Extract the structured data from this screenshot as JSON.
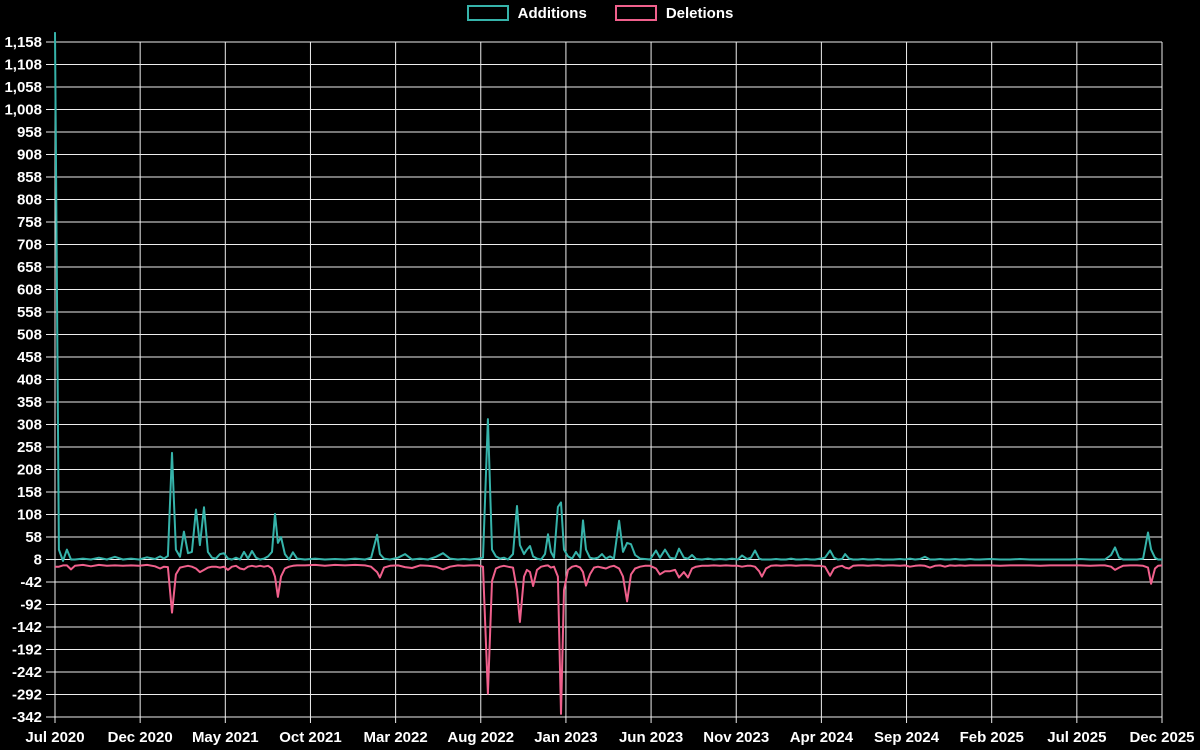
{
  "colors": {
    "background": "#000000",
    "grid": "#ededed",
    "text": "#ffffff",
    "additions": "#36b3aa",
    "deletions": "#f0608c"
  },
  "legend": {
    "items": [
      {
        "label": "Additions",
        "color": "#36b3aa"
      },
      {
        "label": "Deletions",
        "color": "#f0608c"
      }
    ]
  },
  "chart_data": {
    "type": "line",
    "legend_position": "top-center",
    "grid": true,
    "x_axis": {
      "unit": "months since Jul 2020",
      "range": [
        0,
        65
      ],
      "tick_positions": [
        0,
        5,
        10,
        15,
        20,
        25,
        30,
        35,
        40,
        45,
        50,
        55,
        60,
        65
      ],
      "tick_labels": [
        "Jul 2020",
        "Dec 2020",
        "May 2021",
        "Oct 2021",
        "Mar 2022",
        "Aug 2022",
        "Jan 2023",
        "Jun 2023",
        "Nov 2023",
        "Apr 2024",
        "Sep 2024",
        "Feb 2025",
        "Jul 2025",
        "Dec 2025"
      ]
    },
    "y_axis": {
      "range": [
        -342,
        1158
      ],
      "ticks": [
        1158,
        1108,
        1058,
        1008,
        958,
        908,
        858,
        808,
        758,
        708,
        658,
        608,
        558,
        508,
        458,
        408,
        358,
        308,
        258,
        208,
        158,
        108,
        58,
        8,
        -42,
        -92,
        -142,
        -192,
        -242,
        -292,
        -342
      ],
      "tick_labels": [
        "1,158",
        "1,108",
        "1,058",
        "1,008",
        "958",
        "908",
        "858",
        "808",
        "758",
        "708",
        "658",
        "608",
        "558",
        "508",
        "458",
        "408",
        "358",
        "308",
        "258",
        "208",
        "158",
        "108",
        "58",
        "8",
        "-42",
        "-92",
        "-142",
        "-192",
        "-242",
        "-292",
        "-342"
      ]
    },
    "x": [
      0,
      0.23,
      0.47,
      0.7,
      0.94,
      1.17,
      1.64,
      2.11,
      2.58,
      3.05,
      3.52,
      3.99,
      4.46,
      4.93,
      5.4,
      5.87,
      6.17,
      6.4,
      6.63,
      6.87,
      7.1,
      7.34,
      7.57,
      7.81,
      8.04,
      8.28,
      8.51,
      8.75,
      8.98,
      9.22,
      9.45,
      9.69,
      9.92,
      10.16,
      10.39,
      10.63,
      10.86,
      11.1,
      11.33,
      11.57,
      11.8,
      12.04,
      12.27,
      12.51,
      12.74,
      12.92,
      13.09,
      13.27,
      13.5,
      13.74,
      13.97,
      14.21,
      14.68,
      15.27,
      15.85,
      16.44,
      17.03,
      17.62,
      18.2,
      18.56,
      18.91,
      19.08,
      19.32,
      19.67,
      20.14,
      20.55,
      20.96,
      21.43,
      21.9,
      22.37,
      22.78,
      23.19,
      23.66,
      24.01,
      24.37,
      24.84,
      25.13,
      25.42,
      25.66,
      25.89,
      26.13,
      26.36,
      26.6,
      26.89,
      27.13,
      27.3,
      27.54,
      27.71,
      27.89,
      28.07,
      28.3,
      28.54,
      28.77,
      28.95,
      29.12,
      29.3,
      29.53,
      29.71,
      29.89,
      30.12,
      30.36,
      30.59,
      30.83,
      31.0,
      31.18,
      31.41,
      31.65,
      31.88,
      32.12,
      32.35,
      32.59,
      32.82,
      33.12,
      33.35,
      33.59,
      33.82,
      34.06,
      34.35,
      34.64,
      34.94,
      35.29,
      35.52,
      35.82,
      36.11,
      36.41,
      36.64,
      36.93,
      37.17,
      37.4,
      37.64,
      37.99,
      38.34,
      38.69,
      39.05,
      39.4,
      39.75,
      40.1,
      40.34,
      40.63,
      40.87,
      41.1,
      41.34,
      41.51,
      41.75,
      42.04,
      42.34,
      42.63,
      42.92,
      43.22,
      43.51,
      43.8,
      44.1,
      44.39,
      44.62,
      44.92,
      45.21,
      45.51,
      45.74,
      45.97,
      46.21,
      46.39,
      46.62,
      46.86,
      47.15,
      47.44,
      47.74,
      48.03,
      48.32,
      48.62,
      48.91,
      49.21,
      49.62,
      49.91,
      50.2,
      50.5,
      50.79,
      51.08,
      51.38,
      51.67,
      51.97,
      52.26,
      52.55,
      52.85,
      53.14,
      53.43,
      53.73,
      54.02,
      54.31,
      54.9,
      55.49,
      56.08,
      56.66,
      57.25,
      57.84,
      58.42,
      59.01,
      59.6,
      60.19,
      60.77,
      61.36,
      61.65,
      62.01,
      62.24,
      62.48,
      62.71,
      63.12,
      63.53,
      63.89,
      64.18,
      64.36,
      64.59,
      64.77,
      65
    ],
    "series": [
      {
        "name": "Additions",
        "color": "#36b3aa",
        "values": [
          1180,
          30,
          5,
          30,
          8,
          8,
          10,
          8,
          12,
          8,
          14,
          8,
          10,
          8,
          13,
          9,
          15,
          10,
          16,
          245,
          30,
          14,
          70,
          22,
          25,
          119,
          40,
          124,
          25,
          12,
          10,
          20,
          22,
          10,
          8,
          12,
          8,
          25,
          10,
          27,
          12,
          8,
          10,
          15,
          25,
          109,
          45,
          58,
          20,
          8,
          24,
          10,
          8,
          10,
          8,
          9,
          8,
          10,
          8,
          12,
          63,
          20,
          10,
          8,
          12,
          20,
          8,
          10,
          8,
          14,
          22,
          10,
          8,
          9,
          8,
          10,
          12,
          320,
          30,
          15,
          10,
          12,
          8,
          20,
          127,
          40,
          20,
          30,
          38,
          15,
          10,
          8,
          20,
          64,
          25,
          12,
          125,
          135,
          30,
          15,
          10,
          25,
          12,
          95,
          30,
          12,
          10,
          12,
          20,
          10,
          15,
          10,
          94,
          25,
          45,
          42,
          18,
          10,
          9,
          8,
          28,
          12,
          30,
          12,
          10,
          32,
          12,
          10,
          18,
          9,
          8,
          10,
          8,
          9,
          8,
          10,
          8,
          17,
          9,
          12,
          28,
          10,
          8,
          8,
          8,
          9,
          8,
          8,
          10,
          8,
          8,
          9,
          8,
          8,
          10,
          12,
          28,
          12,
          8,
          9,
          20,
          10,
          8,
          8,
          9,
          8,
          8,
          9,
          8,
          8,
          8,
          9,
          8,
          10,
          8,
          9,
          14,
          8,
          8,
          9,
          8,
          8,
          9,
          8,
          8,
          9,
          8,
          8,
          9,
          8,
          8,
          9,
          8,
          8,
          8,
          8,
          8,
          9,
          8,
          8,
          8,
          18,
          35,
          12,
          8,
          8,
          8,
          10,
          68,
          30,
          12,
          8,
          8
        ]
      },
      {
        "name": "Deletions",
        "color": "#f0608c",
        "values": [
          -8,
          -8,
          -5,
          -5,
          -14,
          -6,
          -4,
          -7,
          -4,
          -6,
          -5,
          -6,
          -5,
          -6,
          -4,
          -7,
          -12,
          -8,
          -9,
          -110,
          -25,
          -10,
          -8,
          -6,
          -8,
          -12,
          -20,
          -15,
          -10,
          -8,
          -8,
          -10,
          -8,
          -15,
          -8,
          -6,
          -12,
          -14,
          -8,
          -6,
          -8,
          -6,
          -8,
          -6,
          -12,
          -30,
          -75,
          -30,
          -12,
          -8,
          -6,
          -5,
          -5,
          -4,
          -6,
          -4,
          -5,
          -4,
          -5,
          -8,
          -20,
          -32,
          -10,
          -6,
          -5,
          -9,
          -11,
          -5,
          -6,
          -8,
          -14,
          -8,
          -5,
          -6,
          -5,
          -5,
          -8,
          -290,
          -40,
          -12,
          -8,
          -6,
          -8,
          -10,
          -60,
          -131,
          -30,
          -15,
          -20,
          -51,
          -15,
          -8,
          -6,
          -5,
          -10,
          -8,
          -30,
          -335,
          -60,
          -15,
          -8,
          -6,
          -10,
          -20,
          -50,
          -25,
          -10,
          -8,
          -10,
          -12,
          -8,
          -6,
          -12,
          -30,
          -85,
          -25,
          -12,
          -8,
          -6,
          -6,
          -12,
          -25,
          -18,
          -18,
          -15,
          -32,
          -20,
          -32,
          -12,
          -8,
          -6,
          -6,
          -5,
          -6,
          -5,
          -6,
          -6,
          -8,
          -6,
          -6,
          -8,
          -18,
          -30,
          -12,
          -6,
          -5,
          -6,
          -5,
          -5,
          -6,
          -5,
          -5,
          -5,
          -6,
          -6,
          -8,
          -28,
          -12,
          -8,
          -6,
          -10,
          -12,
          -6,
          -5,
          -5,
          -6,
          -5,
          -5,
          -6,
          -5,
          -5,
          -6,
          -5,
          -8,
          -6,
          -5,
          -6,
          -10,
          -6,
          -5,
          -8,
          -5,
          -6,
          -5,
          -6,
          -5,
          -5,
          -5,
          -5,
          -6,
          -5,
          -5,
          -5,
          -6,
          -5,
          -5,
          -5,
          -5,
          -6,
          -5,
          -5,
          -8,
          -15,
          -10,
          -6,
          -5,
          -5,
          -6,
          -10,
          -46,
          -12,
          -6,
          -5
        ]
      }
    ]
  }
}
